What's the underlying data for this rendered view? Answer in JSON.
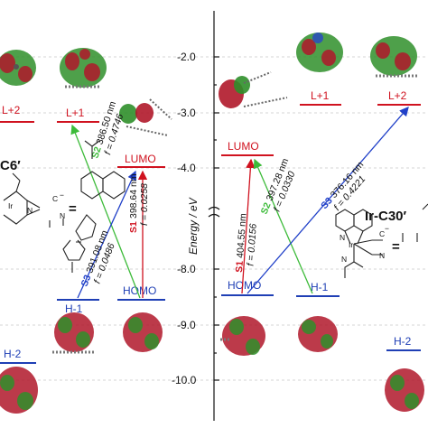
{
  "axis": {
    "title": "Energy / eV",
    "ticks": [
      "-2.0",
      "-3.0",
      "-4.0",
      "-8.0",
      "-9.0",
      "-10.0"
    ]
  },
  "left": {
    "compound": "C6′",
    "levels": {
      "l2": "L+2",
      "l1": "L+1",
      "lumo": "LUMO",
      "h1": "H-1",
      "homo": "HOMO",
      "h2": "H-2"
    },
    "transitions": {
      "s2": {
        "state": "S2",
        "wavelength": "386.50 nm",
        "f": "f = 0.4746"
      },
      "s1": {
        "state": "S1",
        "wavelength": "398.64 nm",
        "f": "f = 0.0258"
      },
      "s3": {
        "state": "S3",
        "wavelength": "391.08 nm",
        "f": "f = 0.0486"
      }
    }
  },
  "right": {
    "compound": "Ir-C30′",
    "levels": {
      "l1": "L+1",
      "l2": "L+2",
      "lumo": "LUMO",
      "homo": "HOMO",
      "h1": "H-1",
      "h2": "H-2"
    },
    "transitions": {
      "s1": {
        "state": "S1",
        "wavelength": "404.55 nm",
        "f": "f = 0.0156"
      },
      "s2": {
        "state": "S2",
        "wavelength": "397.28 nm",
        "f": "f = 0.0330"
      },
      "s3": {
        "state": "S3",
        "wavelength": "376.16 nm",
        "f": "f = 0.4221"
      }
    }
  },
  "structure_atoms": {
    "ir": "Ir",
    "n": "N",
    "c": "C",
    "eq": "=",
    "minus": "−"
  },
  "colors": {
    "level_red": "#d0121f",
    "level_blue": "#1f3fb5",
    "arrow_green": "#3dbb3a",
    "arrow_red": "#d0121f",
    "arrow_blue": "#2040c8",
    "orbital_red": "#b0182a",
    "orbital_green": "#2f8f2a"
  }
}
